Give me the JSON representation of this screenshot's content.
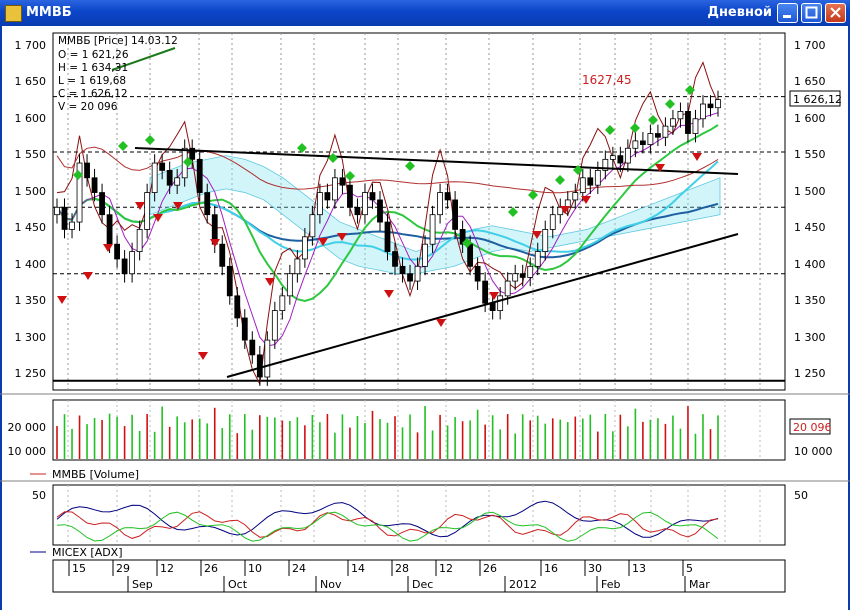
{
  "window": {
    "title": "ММВБ",
    "view": "Дневной"
  },
  "colors": {
    "up": "#22c022",
    "down": "#d01010",
    "accent_red": "#cc2020",
    "adx": "#000080"
  },
  "price_panel": {
    "info": [
      "ММВБ [Price] 14.03.12",
      "O = 1 621,26",
      "H = 1 634,31",
      "L = 1 619,68",
      "C = 1 626,12",
      "V = 20 096"
    ],
    "y_labels": [
      "1 700",
      "1 650",
      "1 600",
      "1 550",
      "1 500",
      "1 450",
      "1 400",
      "1 350",
      "1 300",
      "1 250"
    ],
    "last_price": "1 626,12",
    "annotation": "1627,45"
  },
  "volume_panel": {
    "y_labels": [
      "20 000",
      "10 000"
    ],
    "last_value": "20 096",
    "legend": "ММВБ [Volume]"
  },
  "adx_panel": {
    "y_label": "50",
    "legend": "MICEX [ADX]"
  },
  "time_axis": {
    "days": [
      "15",
      "29",
      "12",
      "26",
      "10",
      "24",
      "14",
      "28",
      "12",
      "26",
      "16",
      "30",
      "13",
      "5"
    ],
    "months": [
      "Sep",
      "Oct",
      "Nov",
      "Dec",
      "2012",
      "Feb",
      "Mar"
    ]
  },
  "chart_data": [
    {
      "type": "candlestick",
      "title": "ММВБ [Price] 14.03.12",
      "ylim": [
        1230,
        1715
      ],
      "last": {
        "open": 1621.26,
        "high": 1634.31,
        "low": 1619.68,
        "close": 1626.12,
        "volume": 20096
      },
      "approx_closes": [
        1480,
        1450,
        1460,
        1540,
        1520,
        1500,
        1470,
        1430,
        1410,
        1390,
        1420,
        1450,
        1500,
        1540,
        1530,
        1510,
        1520,
        1560,
        1545,
        1500,
        1470,
        1430,
        1400,
        1360,
        1330,
        1300,
        1280,
        1250,
        1300,
        1340,
        1360,
        1390,
        1410,
        1440,
        1470,
        1500,
        1490,
        1520,
        1510,
        1480,
        1470,
        1500,
        1490,
        1460,
        1420,
        1400,
        1390,
        1380,
        1400,
        1430,
        1470,
        1500,
        1490,
        1450,
        1430,
        1400,
        1380,
        1350,
        1340,
        1360,
        1380,
        1390,
        1385,
        1400,
        1420,
        1450,
        1470,
        1480,
        1490,
        1500,
        1520,
        1510,
        1530,
        1545,
        1550,
        1540,
        1560,
        1570,
        1565,
        1580,
        1575,
        1590,
        1600,
        1610,
        1580,
        1600,
        1620,
        1615,
        1626
      ],
      "horizontal_levels": [
        1630,
        1555,
        1480,
        1390
      ],
      "annotation_level": 1627.45,
      "lines": [
        {
          "name": "resistance",
          "from": [
            1550,
            1553
          ],
          "to": [
            1525,
            1519
          ]
        },
        {
          "name": "support",
          "from": [
            1245,
            1245
          ],
          "to": [
            1440,
            1440
          ]
        }
      ]
    },
    {
      "type": "bar",
      "title": "ММВБ [Volume]",
      "ylim": [
        0,
        30000
      ],
      "last_value": 20096
    },
    {
      "type": "line",
      "title": "MICEX [ADX]",
      "ylim": [
        0,
        55
      ]
    }
  ]
}
